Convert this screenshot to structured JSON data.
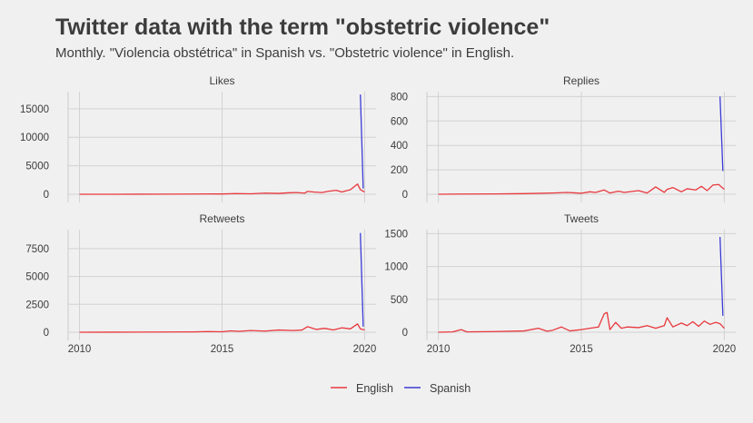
{
  "title": "Twitter data with the term \"obstetric violence\"",
  "subtitle": "Monthly. \"Violencia obstétrica\" in Spanish vs. \"Obstetric violence\" in English.",
  "colors": {
    "English": "#e8383d",
    "Spanish": "#3b3bd6"
  },
  "chart_data": {
    "type": "line",
    "x_unit": "year (decimal)",
    "xlim": [
      2010,
      2020
    ],
    "x_ticks": [
      "2010",
      "2015",
      "2020"
    ],
    "legend": {
      "position": "bottom",
      "entries": [
        "English",
        "Spanish"
      ]
    },
    "grid": true,
    "facets": [
      {
        "label": "Likes",
        "ylim": [
          0,
          18000
        ],
        "y_ticks": [
          "0",
          "5000",
          "10000",
          "15000"
        ],
        "series": [
          {
            "name": "English",
            "x": [
              2010.0,
              2011.0,
              2012.0,
              2013.0,
              2014.0,
              2014.5,
              2015.0,
              2015.5,
              2016.0,
              2016.5,
              2017.0,
              2017.3,
              2017.6,
              2017.9,
              2018.0,
              2018.2,
              2018.5,
              2018.7,
              2019.0,
              2019.2,
              2019.5,
              2019.75,
              2019.85,
              2020.0
            ],
            "y": [
              0,
              0,
              10,
              20,
              40,
              60,
              50,
              120,
              80,
              200,
              150,
              250,
              300,
              200,
              500,
              400,
              300,
              500,
              700,
              400,
              800,
              1800,
              800,
              400
            ]
          },
          {
            "name": "Spanish",
            "x": [
              2019.85,
              2019.95
            ],
            "y": [
              17500,
              1000
            ]
          }
        ]
      },
      {
        "label": "Replies",
        "ylim": [
          0,
          840
        ],
        "y_ticks": [
          "0",
          "200",
          "400",
          "600",
          "800"
        ],
        "series": [
          {
            "name": "English",
            "x": [
              2010.0,
              2011.0,
              2012.0,
              2013.0,
              2014.0,
              2014.5,
              2015.0,
              2015.3,
              2015.5,
              2015.8,
              2016.0,
              2016.3,
              2016.5,
              2017.0,
              2017.3,
              2017.6,
              2017.9,
              2018.0,
              2018.2,
              2018.5,
              2018.7,
              2019.0,
              2019.2,
              2019.4,
              2019.6,
              2019.8,
              2020.0
            ],
            "y": [
              0,
              2,
              3,
              5,
              10,
              15,
              8,
              20,
              15,
              35,
              10,
              25,
              15,
              30,
              10,
              60,
              15,
              40,
              55,
              20,
              45,
              35,
              65,
              30,
              75,
              80,
              40
            ]
          },
          {
            "name": "Spanish",
            "x": [
              2019.85,
              2019.95
            ],
            "y": [
              800,
              190
            ]
          }
        ]
      },
      {
        "label": "Retweets",
        "ylim": [
          0,
          9200
        ],
        "y_ticks": [
          "0",
          "2500",
          "5000",
          "7500"
        ],
        "series": [
          {
            "name": "English",
            "x": [
              2010.0,
              2011.0,
              2012.0,
              2013.0,
              2014.0,
              2014.5,
              2015.0,
              2015.3,
              2015.6,
              2016.0,
              2016.5,
              2017.0,
              2017.5,
              2017.8,
              2018.0,
              2018.3,
              2018.6,
              2018.9,
              2019.2,
              2019.5,
              2019.75,
              2019.85,
              2020.0
            ],
            "y": [
              0,
              5,
              10,
              20,
              30,
              60,
              40,
              120,
              80,
              150,
              100,
              200,
              150,
              200,
              500,
              250,
              350,
              200,
              400,
              300,
              750,
              300,
              200
            ]
          },
          {
            "name": "Spanish",
            "x": [
              2019.85,
              2019.95
            ],
            "y": [
              8900,
              500
            ]
          }
        ]
      },
      {
        "label": "Tweets",
        "ylim": [
          0,
          1560
        ],
        "y_ticks": [
          "0",
          "500",
          "1000",
          "1500"
        ],
        "series": [
          {
            "name": "English",
            "x": [
              2010.0,
              2010.5,
              2010.8,
              2011.0,
              2012.0,
              2013.0,
              2013.5,
              2013.8,
              2014.0,
              2014.3,
              2014.6,
              2015.0,
              2015.3,
              2015.6,
              2015.8,
              2015.9,
              2016.0,
              2016.2,
              2016.4,
              2016.6,
              2017.0,
              2017.3,
              2017.6,
              2017.9,
              2018.0,
              2018.2,
              2018.5,
              2018.7,
              2018.9,
              2019.1,
              2019.3,
              2019.5,
              2019.7,
              2019.85,
              2020.0
            ],
            "y": [
              0,
              5,
              40,
              5,
              10,
              20,
              60,
              15,
              30,
              80,
              20,
              40,
              60,
              80,
              280,
              300,
              40,
              150,
              60,
              80,
              70,
              100,
              60,
              100,
              220,
              80,
              140,
              100,
              160,
              90,
              170,
              120,
              150,
              130,
              60
            ]
          },
          {
            "name": "Spanish",
            "x": [
              2019.85,
              2019.95
            ],
            "y": [
              1450,
              250
            ]
          }
        ]
      }
    ]
  }
}
